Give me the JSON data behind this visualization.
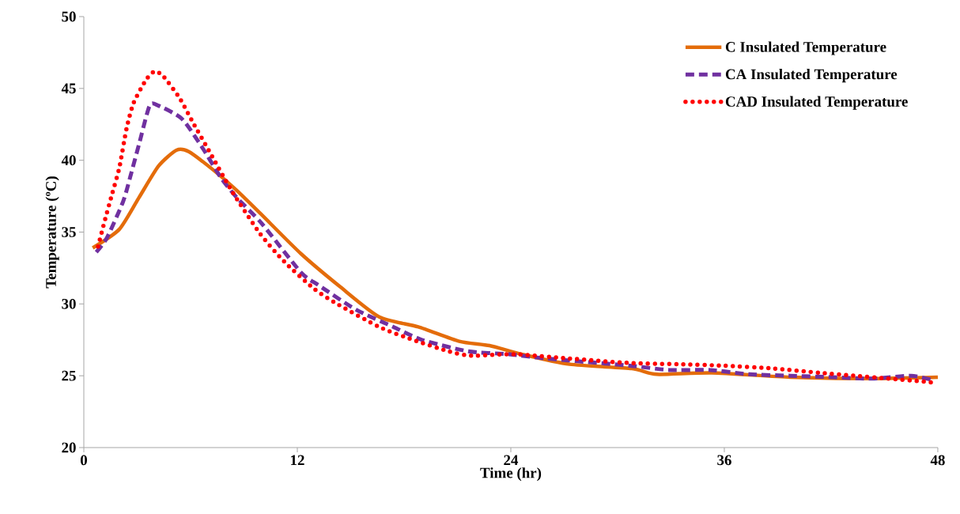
{
  "chart_data": {
    "type": "line",
    "xlabel": "Time (hr)",
    "ylabel": "Temperature (ºC)",
    "xlim": [
      0,
      48
    ],
    "ylim": [
      20,
      50
    ],
    "xticks": [
      0,
      12,
      24,
      36,
      48
    ],
    "yticks": [
      20,
      25,
      30,
      35,
      40,
      45,
      50
    ],
    "grid": false,
    "legend": "top right",
    "marker": "none",
    "series": [
      {
        "name": "C Insulated Temperature",
        "color": "#e46c0a",
        "line_style": "solid",
        "x": [
          0.5,
          2.0,
          3.1,
          4.2,
          5.2,
          5.9,
          7.3,
          8.6,
          10,
          12.2,
          14.4,
          16.6,
          18.8,
          21.1,
          22.8,
          24.6,
          27.3,
          30.8,
          32.2,
          35.3,
          39.7,
          44.2,
          48
        ],
        "values": [
          33.9,
          35.2,
          37.4,
          39.6,
          40.7,
          40.6,
          39.3,
          37.9,
          36.2,
          33.5,
          31.2,
          29.1,
          28.4,
          27.4,
          27.1,
          26.5,
          25.8,
          25.5,
          25.1,
          25.2,
          24.9,
          24.8,
          24.9
        ]
      },
      {
        "name": "CA Insulated Temperature",
        "color": "#7030a0",
        "line_style": "dashed",
        "x": [
          0.7,
          1.3,
          2.2,
          2.6,
          3.1,
          3.7,
          4.2,
          5.5,
          6.6,
          7.7,
          8.6,
          10,
          12.2,
          13.2,
          15.3,
          17.4,
          19.0,
          21.6,
          23.9,
          26.0,
          30.7,
          32.9,
          35.2,
          37.4,
          39.7,
          42.1,
          44.3,
          46.5,
          47.7
        ],
        "values": [
          33.6,
          34.6,
          37.1,
          38.8,
          41.1,
          43.8,
          43.8,
          42.9,
          41.0,
          38.8,
          37.4,
          35.6,
          32.2,
          31.3,
          29.6,
          28.4,
          27.5,
          26.7,
          26.5,
          26.2,
          25.7,
          25.4,
          25.4,
          25.1,
          25.0,
          24.9,
          24.8,
          25.0,
          24.7
        ]
      },
      {
        "name": "CAD Insulated Temperature",
        "color": "#ff0000",
        "line_style": "dotted",
        "x": [
          0.8,
          1.2,
          1.6,
          2.0,
          2.4,
          2.8,
          3.5,
          4.0,
          4.5,
          5.4,
          6.1,
          7.2,
          8.3,
          9.9,
          11.3,
          12.9,
          14.1,
          16.6,
          18.5,
          20.5,
          21.8,
          24.2,
          27.3,
          30.5,
          33.4,
          36.0,
          38.8,
          41.4,
          43.3,
          45.2,
          47.2,
          47.8
        ],
        "values": [
          34.0,
          35.9,
          37.7,
          39.5,
          42.2,
          44.0,
          45.6,
          46.2,
          45.8,
          44.3,
          42.7,
          40.3,
          37.9,
          34.9,
          32.9,
          31.1,
          30.1,
          28.4,
          27.5,
          26.7,
          26.4,
          26.5,
          26.2,
          25.9,
          25.8,
          25.7,
          25.5,
          25.2,
          25.0,
          24.8,
          24.6,
          24.5
        ]
      }
    ]
  }
}
